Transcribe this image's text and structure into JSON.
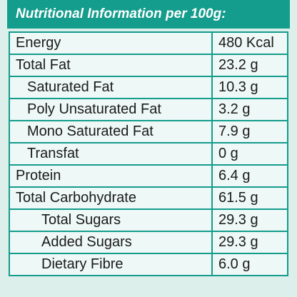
{
  "title": "Nutritional Information per 100g:",
  "rows": [
    [
      "Energy",
      "480 Kcal"
    ],
    [
      "Total Fat",
      "23.2 g"
    ],
    [
      "Saturated Fat",
      "10.3 g"
    ],
    [
      "Poly Unsaturated Fat",
      "3.2 g"
    ],
    [
      "Mono Saturated Fat",
      "7.9 g"
    ],
    [
      "Transfat",
      "0 g"
    ],
    [
      "Protein",
      "6.4 g"
    ],
    [
      "Total Carbohydrate",
      "61.5 g"
    ],
    [
      "Total Sugars",
      "29.3 g"
    ],
    [
      "Added Sugars",
      "29.3 g"
    ],
    [
      "Dietary Fibre",
      "6.0 g"
    ]
  ]
}
